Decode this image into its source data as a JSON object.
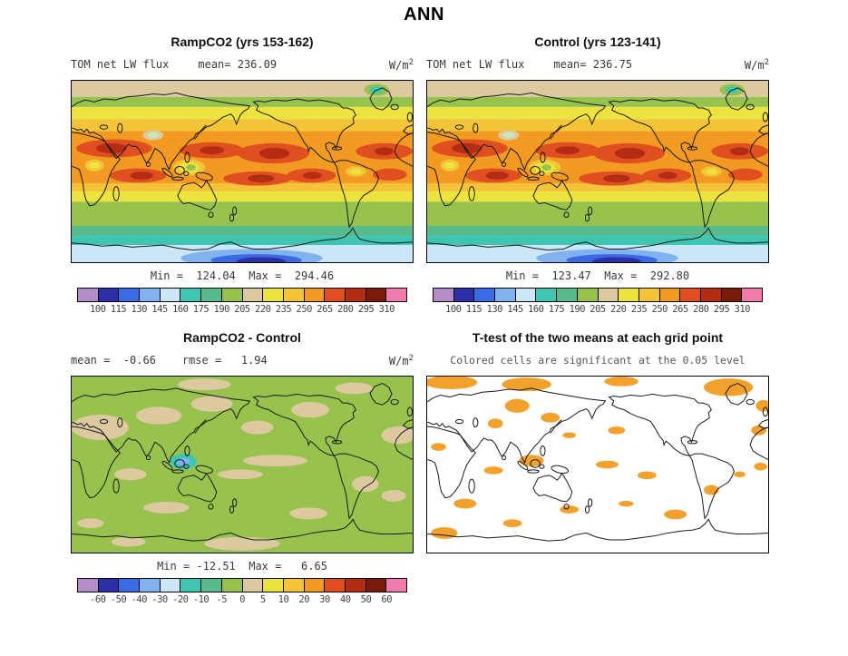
{
  "figure_title": "ANN",
  "panels": {
    "ramp": {
      "title": "RampCO2 (yrs 153-162)",
      "variable": "TOM net LW flux",
      "mean": "mean= 236.09",
      "units_base": "W/m",
      "units_exp": "2",
      "minmax": "Min =  124.04  Max =  294.46"
    },
    "control": {
      "title": "Control (yrs 123-141)",
      "variable": "TOM net LW flux",
      "mean": "mean= 236.75",
      "units_base": "W/m",
      "units_exp": "2",
      "minmax": "Min =  123.47  Max =  292.80"
    },
    "diff": {
      "title": "RampCO2 - Control",
      "stats": "mean =  -0.66    rmse =   1.94",
      "units_base": "W/m",
      "units_exp": "2",
      "minmax": "Min = -12.51  Max =   6.65"
    },
    "ttest": {
      "title": "T-test of the two means at each grid point",
      "subtitle": "Colored cells are significant at the 0.05 level"
    }
  },
  "colorbars": {
    "flux": {
      "ticks": [
        "100",
        "115",
        "130",
        "145",
        "160",
        "175",
        "190",
        "205",
        "220",
        "235",
        "250",
        "265",
        "280",
        "295",
        "310"
      ],
      "colors": [
        "#b48cc8",
        "#2c2fa8",
        "#3b6be4",
        "#7fb2ee",
        "#cbe6f6",
        "#3ec6b3",
        "#58bb8d",
        "#96c24d",
        "#dcc9a0",
        "#ece33e",
        "#f3c338",
        "#f29a22",
        "#e04f1f",
        "#b42c14",
        "#7a1a0a",
        "#ef7cab"
      ]
    },
    "diff": {
      "ticks": [
        "-60",
        "-50",
        "-40",
        "-30",
        "-20",
        "-10",
        "-5",
        "0",
        "5",
        "10",
        "20",
        "30",
        "40",
        "50",
        "60"
      ],
      "colors": [
        "#b48cc8",
        "#2c2fa8",
        "#3b6be4",
        "#7fb2ee",
        "#cbe6f6",
        "#3ec6b3",
        "#58bb8d",
        "#96c24d",
        "#dcc9a0",
        "#ece33e",
        "#f3c338",
        "#f29a22",
        "#e04f1f",
        "#b42c14",
        "#7a1a0a",
        "#ef7cab"
      ]
    }
  },
  "chart_data": [
    {
      "type": "heatmap",
      "title": "RampCO2 (yrs 153-162)",
      "season": "ANN",
      "variable": "TOM net LW flux",
      "units": "W/m^2",
      "projection": "global lat-lon map, Pacific-centered (0-360E)",
      "mean": 236.09,
      "min": 124.04,
      "max": 294.46,
      "contour_levels": [
        100,
        115,
        130,
        145,
        160,
        175,
        190,
        205,
        220,
        235,
        250,
        265,
        280,
        295,
        310
      ],
      "palette": [
        "#b48cc8",
        "#2c2fa8",
        "#3b6be4",
        "#7fb2ee",
        "#cbe6f6",
        "#3ec6b3",
        "#58bb8d",
        "#96c24d",
        "#dcc9a0",
        "#ece33e",
        "#f3c338",
        "#f29a22",
        "#e04f1f",
        "#b42c14",
        "#7a1a0a",
        "#ef7cab"
      ],
      "pattern": "high OLR (orange/dark red) in subtropics, yellow-green lows over Maritime Continent and Tibet, tan Arctic band, green-teal-blue toward Antarctica"
    },
    {
      "type": "heatmap",
      "title": "Control (yrs 123-141)",
      "season": "ANN",
      "variable": "TOM net LW flux",
      "units": "W/m^2",
      "projection": "global lat-lon map, Pacific-centered (0-360E)",
      "mean": 236.75,
      "min": 123.47,
      "max": 292.8,
      "contour_levels": [
        100,
        115,
        130,
        145,
        160,
        175,
        190,
        205,
        220,
        235,
        250,
        265,
        280,
        295,
        310
      ],
      "palette": [
        "#b48cc8",
        "#2c2fa8",
        "#3b6be4",
        "#7fb2ee",
        "#cbe6f6",
        "#3ec6b3",
        "#58bb8d",
        "#96c24d",
        "#dcc9a0",
        "#ece33e",
        "#f3c338",
        "#f29a22",
        "#e04f1f",
        "#b42c14",
        "#7a1a0a",
        "#ef7cab"
      ],
      "pattern": "nearly identical spatial pattern to RampCO2 panel"
    },
    {
      "type": "heatmap",
      "title": "RampCO2 - Control",
      "season": "ANN",
      "variable": "TOM net LW flux difference",
      "units": "W/m^2",
      "mean": -0.66,
      "rmse": 1.94,
      "min": -12.51,
      "max": 6.65,
      "contour_levels": [
        -60,
        -50,
        -40,
        -30,
        -20,
        -10,
        -5,
        0,
        5,
        10,
        20,
        30,
        40,
        50,
        60
      ],
      "palette": [
        "#b48cc8",
        "#2c2fa8",
        "#3b6be4",
        "#7fb2ee",
        "#cbe6f6",
        "#3ec6b3",
        "#58bb8d",
        "#96c24d",
        "#dcc9a0",
        "#ece33e",
        "#f3c338",
        "#f29a22",
        "#e04f1f",
        "#b42c14",
        "#7a1a0a",
        "#ef7cab"
      ],
      "pattern": "mostly green (-5 to 0) with scattered tan (0 to 5) patches and a teal negative anomaly near the Maritime Continent"
    },
    {
      "type": "heatmap",
      "title": "T-test of the two means at each grid point",
      "subtitle": "Colored cells are significant at the 0.05 level",
      "significance_level": 0.05,
      "significant_color": "#f2a12d",
      "pattern": "white background with scattered orange significant cells, largest clusters at high northern latitudes, over Asia, the Maritime Continent, tropical Pacific and Southern Ocean"
    }
  ]
}
